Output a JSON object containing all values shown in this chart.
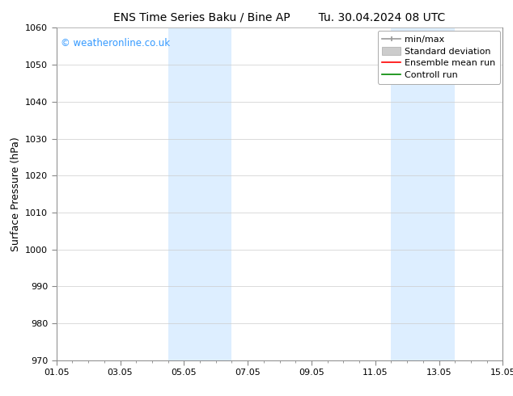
{
  "title_left": "ENS Time Series Baku / Bine AP",
  "title_right": "Tu. 30.04.2024 08 UTC",
  "ylabel": "Surface Pressure (hPa)",
  "ylim": [
    970,
    1060
  ],
  "yticks": [
    970,
    980,
    990,
    1000,
    1010,
    1020,
    1030,
    1040,
    1050,
    1060
  ],
  "xlim": [
    0,
    14
  ],
  "xtick_labels": [
    "01.05",
    "03.05",
    "05.05",
    "07.05",
    "09.05",
    "11.05",
    "13.05",
    "15.05"
  ],
  "xtick_positions": [
    0,
    2,
    4,
    6,
    8,
    10,
    12,
    14
  ],
  "shaded_regions": [
    {
      "x_start": 3.5,
      "x_end": 5.5
    },
    {
      "x_start": 10.5,
      "x_end": 12.5
    }
  ],
  "shaded_color": "#ddeeff",
  "watermark_text": "© weatheronline.co.uk",
  "watermark_color": "#3399ff",
  "background_color": "#ffffff",
  "grid_color": "#cccccc",
  "legend_entries": [
    {
      "label": "min/max",
      "color": "#999999",
      "lw": 1.2
    },
    {
      "label": "Standard deviation",
      "color": "#bbbbbb",
      "lw": 5
    },
    {
      "label": "Ensemble mean run",
      "color": "#ff0000",
      "lw": 1.2
    },
    {
      "label": "Controll run",
      "color": "#008800",
      "lw": 1.2
    }
  ],
  "title_fontsize": 10,
  "tick_label_fontsize": 8,
  "axis_label_fontsize": 9,
  "legend_fontsize": 8
}
